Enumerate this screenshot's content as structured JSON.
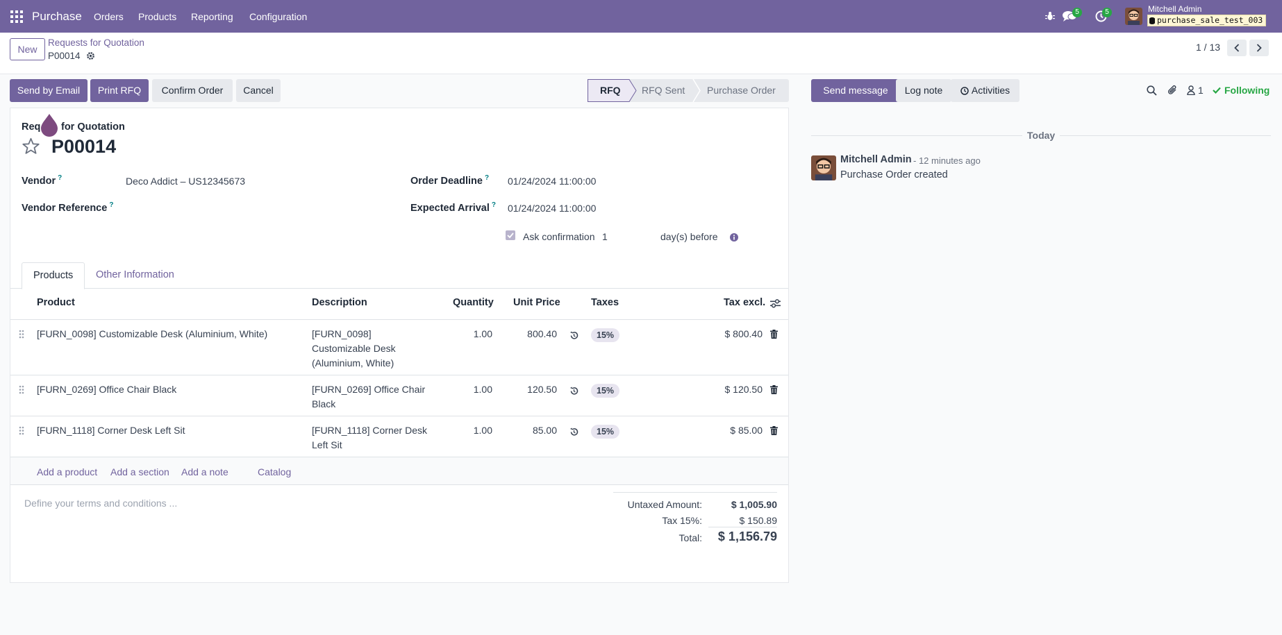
{
  "navbar": {
    "app_name": "Purchase",
    "menu": [
      "Orders",
      "Products",
      "Reporting",
      "Configuration"
    ],
    "messages_count": "5",
    "activities_count": "5",
    "user_name": "Mitchell Admin",
    "database": "purchase_sale_test_003"
  },
  "control_panel": {
    "new_label": "New",
    "breadcrumb_parent": "Requests for Quotation",
    "breadcrumb_current": "P00014",
    "pager": "1 / 13"
  },
  "actions": {
    "send_email": "Send by Email",
    "print_rfq": "Print RFQ",
    "confirm_order": "Confirm Order",
    "cancel": "Cancel"
  },
  "statusbar": {
    "steps": [
      "RFQ",
      "RFQ Sent",
      "Purchase Order"
    ],
    "active": "RFQ"
  },
  "form": {
    "doc_type_a": "Req",
    "doc_type_b": "for Quotation",
    "reference": "P00014",
    "vendor_label": "Vendor",
    "vendor_value": "Deco Addict – US12345673",
    "vendor_ref_label": "Vendor Reference",
    "deadline_label": "Order Deadline",
    "deadline_value": "01/24/2024 11:00:00",
    "arrival_label": "Expected Arrival",
    "arrival_value": "01/24/2024 11:00:00",
    "ask_confirmation_label": "Ask confirmation",
    "ask_confirmation_days": "1",
    "days_before_label": "day(s) before",
    "help_marker": "?"
  },
  "tabs": [
    "Products",
    "Other Information"
  ],
  "order_lines": {
    "headers": [
      "Product",
      "Description",
      "Quantity",
      "Unit Price",
      "Taxes",
      "Tax excl."
    ],
    "rows": [
      {
        "product": "[FURN_0098] Customizable Desk (Aluminium, White)",
        "desc_lines": [
          "[FURN_0098]",
          "Customizable Desk",
          "(Aluminium, White)"
        ],
        "qty": "1.00",
        "price": "800.40",
        "tax": "15%",
        "subtotal": "$ 800.40"
      },
      {
        "product": "[FURN_0269] Office Chair Black",
        "desc_lines": [
          "[FURN_0269] Office Chair",
          "Black"
        ],
        "qty": "1.00",
        "price": "120.50",
        "tax": "15%",
        "subtotal": "$ 120.50"
      },
      {
        "product": "[FURN_1118] Corner Desk Left Sit",
        "desc_lines": [
          "[FURN_1118] Corner Desk",
          "Left Sit"
        ],
        "qty": "1.00",
        "price": "85.00",
        "tax": "15%",
        "subtotal": "$ 85.00"
      }
    ],
    "add_product": "Add a product",
    "add_section": "Add a section",
    "add_note": "Add a note",
    "catalog": "Catalog"
  },
  "terms_placeholder": "Define your terms and conditions ...",
  "totals": {
    "untaxed_label": "Untaxed Amount:",
    "untaxed_value": "$ 1,005.90",
    "tax_label": "Tax 15%:",
    "tax_value": "$ 150.89",
    "total_label": "Total:",
    "total_value": "$ 1,156.79"
  },
  "chatter": {
    "send_message": "Send message",
    "log_note": "Log note",
    "activities": "Activities",
    "followers_count": "1",
    "following": "Following",
    "date_separator": "Today",
    "message": {
      "author": "Mitchell Admin",
      "time": "- 12 minutes ago",
      "body": "Purchase Order created"
    }
  },
  "colors": {
    "brand": "#71639e",
    "success": "#28a745",
    "teal": "#017e84"
  }
}
